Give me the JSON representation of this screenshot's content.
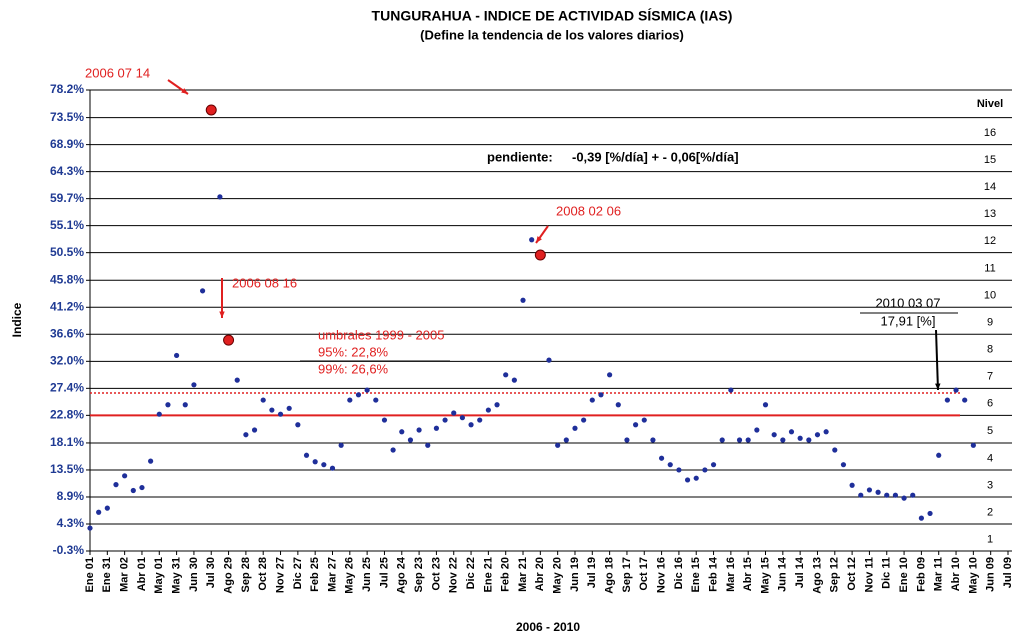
{
  "chart_data": {
    "type": "scatter",
    "title": "TUNGURAHUA - INDICE DE ACTIVIDAD SÍSMICA (IAS)",
    "subtitle": "(Define la tendencia de los valores diarios)",
    "y_label": "Indice",
    "x_label": "2006 - 2010",
    "ylim": [
      -0.3,
      78.2
    ],
    "yticks": [
      {
        "value": -0.3,
        "label": "-0.3%"
      },
      {
        "value": 4.3,
        "label": "4.3%"
      },
      {
        "value": 8.9,
        "label": "8.9%"
      },
      {
        "value": 13.5,
        "label": "13.5%"
      },
      {
        "value": 18.1,
        "label": "18.1%"
      },
      {
        "value": 22.8,
        "label": "22.8%"
      },
      {
        "value": 27.4,
        "label": "27.4%"
      },
      {
        "value": 32.0,
        "label": "32.0%"
      },
      {
        "value": 36.6,
        "label": "36.6%"
      },
      {
        "value": 41.2,
        "label": "41.2%"
      },
      {
        "value": 45.8,
        "label": "45.8%"
      },
      {
        "value": 50.5,
        "label": "50.5%"
      },
      {
        "value": 55.1,
        "label": "55.1%"
      },
      {
        "value": 59.7,
        "label": "59.7%"
      },
      {
        "value": 64.3,
        "label": "64.3%"
      },
      {
        "value": 68.9,
        "label": "68.9%"
      },
      {
        "value": 73.5,
        "label": "73.5%"
      },
      {
        "value": 78.2,
        "label": "78.2%"
      }
    ],
    "grid": true,
    "levels_title": "Nivel",
    "levels": [
      1,
      2,
      3,
      4,
      5,
      6,
      7,
      8,
      9,
      10,
      11,
      12,
      13,
      14,
      15,
      16
    ],
    "categories": [
      "Ene 01",
      null,
      "Ene 31",
      null,
      "Mar 02",
      null,
      "Abr 01",
      null,
      "May 01",
      null,
      "May 31",
      null,
      "Jun 30",
      null,
      "Jul 30",
      null,
      "Ago 29",
      null,
      "Sep 28",
      null,
      "Oct 28",
      null,
      "Nov 27",
      null,
      "Dic 27",
      null,
      "Feb 25",
      null,
      "Mar 27",
      null,
      "May 26",
      null,
      "Jun 25",
      null,
      "Jul 25",
      null,
      "Ago 24",
      null,
      "Sep 23",
      null,
      "Oct 23",
      null,
      "Nov 22",
      null,
      "Dic 22",
      null,
      "Ene 21",
      null,
      "Feb 20",
      null,
      "Mar 21",
      null,
      "Abr 20",
      null,
      "May 20",
      null,
      "Jun 19",
      null,
      "Jul 19",
      null,
      "Ago 18",
      null,
      "Sep 17",
      null,
      "Oct 17",
      null,
      "Nov 16",
      null,
      "Dic 16",
      null,
      "Ene 15",
      null,
      "Feb 14",
      null,
      "Mar 16",
      null,
      "Abr 15",
      null,
      "May 15",
      null,
      "Jun 14",
      null,
      "Jul 14",
      null,
      "Ago 13",
      null,
      "Sep 12",
      null,
      "Oct 12",
      null,
      "Nov 11",
      null,
      "Dic 11",
      null,
      "Ene 10",
      null,
      "Feb 09",
      null,
      "Mar 11",
      null,
      "Abr 10",
      null,
      "May 10",
      null,
      "Jun 09",
      null,
      "Jul 09"
    ],
    "series": [
      {
        "color": "#1f2f9a",
        "values": [
          3.6,
          6.3,
          7.0,
          11.0,
          12.5,
          10.0,
          10.5,
          15.0,
          23.0,
          24.6,
          33.0,
          24.6,
          28.0,
          44.0,
          74.8,
          60.0,
          35.6,
          28.8,
          19.5,
          20.3,
          25.4,
          23.7,
          23.0,
          24.0,
          21.2,
          16.0,
          14.9,
          14.4,
          13.8,
          17.7,
          25.4,
          26.3,
          27.1,
          25.4,
          22.0,
          16.9,
          20.0,
          18.6,
          20.3,
          17.7,
          20.6,
          22.0,
          23.2,
          22.4,
          21.2,
          22.0,
          23.7,
          24.6,
          29.7,
          28.8,
          42.4,
          52.7,
          50.1,
          32.2,
          17.7,
          18.6,
          20.6,
          22.0,
          25.4,
          26.3,
          29.7,
          24.6,
          18.6,
          21.2,
          22.0,
          18.6,
          15.5,
          14.4,
          13.5,
          11.8,
          12.1,
          13.5,
          14.4,
          18.6,
          27.1,
          18.6,
          18.6,
          20.3,
          24.6,
          19.5,
          18.6,
          20.0,
          18.9,
          18.6,
          19.5,
          20.0,
          16.9,
          14.4,
          10.9,
          9.2,
          10.1,
          9.7,
          9.2,
          9.2,
          8.7,
          9.2,
          5.3,
          6.1,
          16.0,
          25.4,
          27.1,
          25.4,
          17.7,
          null,
          null,
          null,
          null
        ]
      }
    ],
    "highlight_indices": [
      14,
      16,
      52
    ],
    "highlight_color": "#e02020",
    "thresholds": [
      {
        "value": 22.8,
        "style": "solid",
        "color": "#e02020"
      },
      {
        "value": 26.6,
        "style": "dotted",
        "color": "#e02020"
      }
    ],
    "annotations": [
      "2006 07 14",
      "2006 08 16",
      "2008 02 06",
      "2010 03 07",
      "17,91 [%]",
      "pendiente:",
      "-0,39 [%/día] + - 0,06[%/día]",
      "umbrales 1999 - 2005",
      "95%:   22,8%",
      "99%:   26,6%"
    ]
  }
}
